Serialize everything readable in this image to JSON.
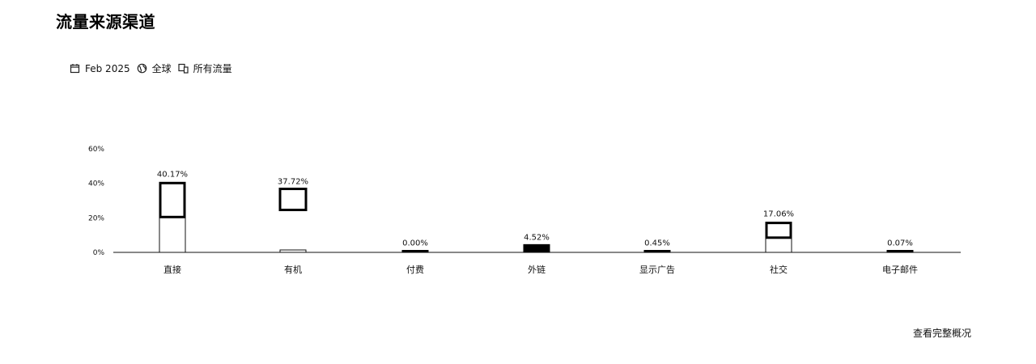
{
  "title": "流量来源渠道",
  "filters": {
    "date": "Feb 2025",
    "region": "全球",
    "traffic_type": "所有流量",
    "icons": [
      "calendar-icon",
      "globe-icon",
      "devices-icon"
    ]
  },
  "footer": {
    "link": "查看完整概况"
  },
  "chart_data": {
    "type": "bar",
    "title": "",
    "xlabel": "",
    "ylabel": "",
    "categories": [
      "直接",
      "有机",
      "付费",
      "外链",
      "显示广告",
      "社交",
      "电子邮件"
    ],
    "values": [
      40.17,
      37.72,
      0.0,
      4.52,
      0.45,
      17.06,
      0.07
    ],
    "data_labels": [
      "40.17%",
      "",
      "0.00%",
      "4.52%",
      "0.45%",
      "17.06%",
      "0.07%"
    ],
    "label_above_second": "37.72%",
    "ylim": [
      0,
      60
    ],
    "yticks": [
      0,
      20,
      40,
      60
    ],
    "ytick_labels": [
      "0%",
      "20%",
      "40%",
      "60%"
    ],
    "grid": false,
    "legend": "none"
  }
}
